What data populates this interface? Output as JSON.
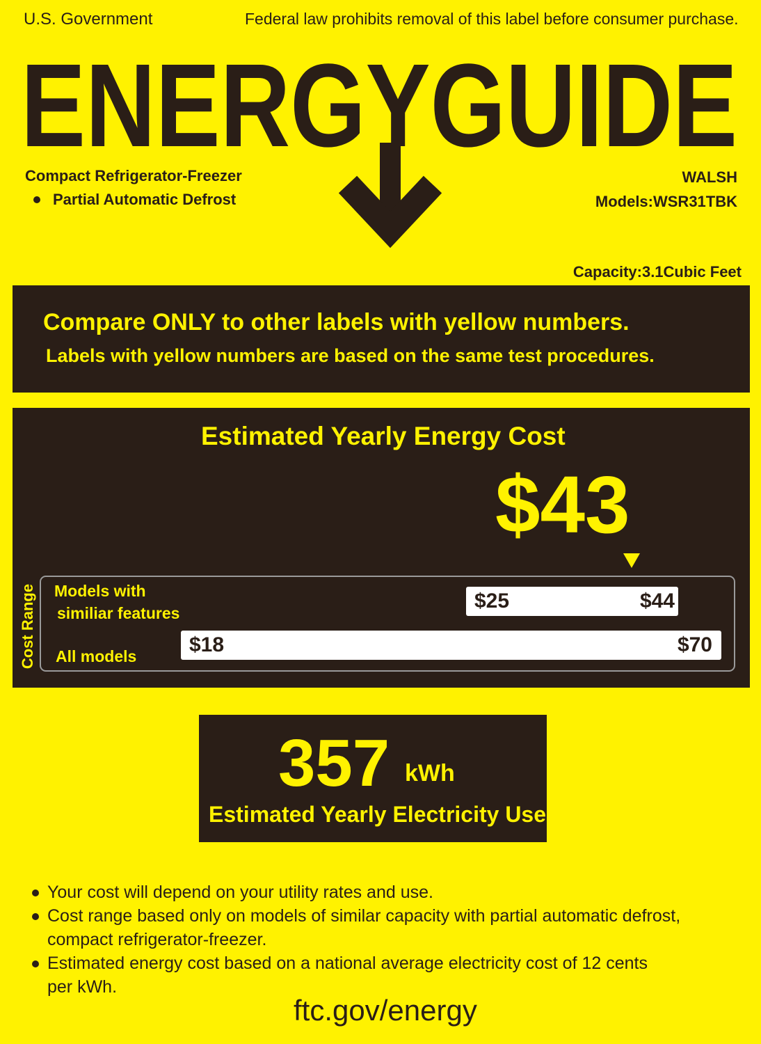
{
  "header": {
    "agency": "U.S. Government",
    "notice": "Federal law prohibits removal of this label before consumer purchase.",
    "title": "ENERGYGUIDE"
  },
  "product": {
    "type": "Compact Refrigerator-Freezer",
    "features": [
      "Partial Automatic Defrost"
    ],
    "brand": "WALSH",
    "model": "Models:WSR31TBK",
    "capacity": "Capacity:3.1Cubic Feet"
  },
  "compare": {
    "headline": "Compare ONLY to other labels with yellow numbers.",
    "subline": "Labels with yellow numbers are based on the same test procedures."
  },
  "cost": {
    "title": "Estimated Yearly Energy Cost",
    "value": "$43",
    "range_label": "Cost Range",
    "similar": {
      "label": [
        "Models with",
        "similiar features"
      ],
      "low": "$25",
      "high": "$44"
    },
    "all": {
      "label": "All models",
      "low": "$18",
      "high": "$70"
    }
  },
  "usage": {
    "value": "357",
    "unit": "kWh",
    "label": "Estimated Yearly Electricity Use"
  },
  "notes": [
    "Your cost will depend on your utility rates and use.",
    "Cost range based only on models of similar capacity with partial automatic defrost, compact refrigerator-freezer.",
    "Estimated energy cost based on a national average electricity cost of 12 cents per kWh."
  ],
  "footer": {
    "url": "ftc.gov/energy"
  }
}
